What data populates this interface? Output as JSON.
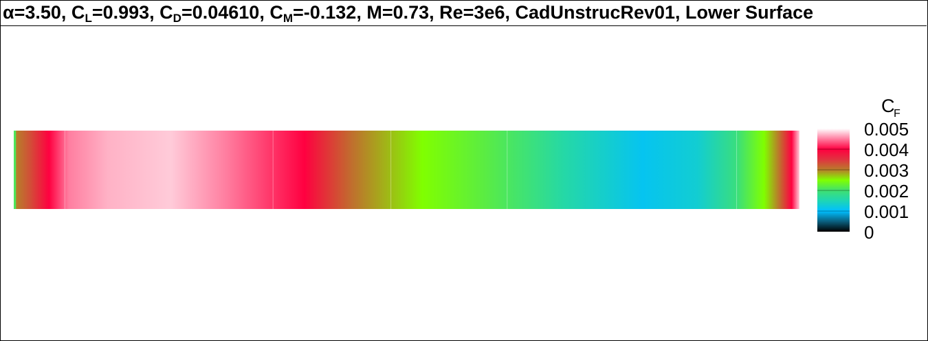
{
  "title": {
    "alpha_symbol": "α",
    "alpha_value": "=3.50, C",
    "cl_sub": "L",
    "cl_value": "=0.993, C",
    "cd_sub": "D",
    "cd_value": "=0.04610, C",
    "cm_sub": "M",
    "cm_value": "=-0.132, M=0.73, Re=3e6, CadUnstrucRev01, Lower Surface"
  },
  "chart_data": {
    "type": "heatmap",
    "variable": "C",
    "variable_sub": "F",
    "colorbar_range": [
      0,
      0.005
    ],
    "colorbar_ticks": [
      "0.005",
      "0.004",
      "0.003",
      "0.002",
      "0.001",
      "0"
    ],
    "colorbar_tick_values": [
      0.005,
      0.004,
      0.003,
      0.002,
      0.001,
      0
    ],
    "colormap": [
      {
        "value": 0.0,
        "color": "#000000"
      },
      {
        "value": 0.0005,
        "color": "#0a6080"
      },
      {
        "value": 0.001,
        "color": "#00bfff"
      },
      {
        "value": 0.0015,
        "color": "#1ed6b4"
      },
      {
        "value": 0.002,
        "color": "#40e070"
      },
      {
        "value": 0.0025,
        "color": "#80ff00"
      },
      {
        "value": 0.003,
        "color": "#b87d2a"
      },
      {
        "value": 0.0035,
        "color": "#e03340"
      },
      {
        "value": 0.004,
        "color": "#ff0040"
      },
      {
        "value": 0.0045,
        "color": "#ff7ea0"
      },
      {
        "value": 0.005,
        "color": "#ffffff"
      }
    ],
    "surface_profile": [
      {
        "x": 0.0,
        "cf": 0.0021
      },
      {
        "x": 0.004,
        "cf": 0.003
      },
      {
        "x": 0.02,
        "cf": 0.0033
      },
      {
        "x": 0.045,
        "cf": 0.004
      },
      {
        "x": 0.07,
        "cf": 0.0045
      },
      {
        "x": 0.12,
        "cf": 0.0047
      },
      {
        "x": 0.2,
        "cf": 0.0048
      },
      {
        "x": 0.27,
        "cf": 0.0045
      },
      {
        "x": 0.37,
        "cf": 0.004
      },
      {
        "x": 0.43,
        "cf": 0.0031
      },
      {
        "x": 0.52,
        "cf": 0.0025
      },
      {
        "x": 0.6,
        "cf": 0.0022
      },
      {
        "x": 0.7,
        "cf": 0.0016
      },
      {
        "x": 0.8,
        "cf": 0.0011
      },
      {
        "x": 0.87,
        "cf": 0.0013
      },
      {
        "x": 0.92,
        "cf": 0.0019
      },
      {
        "x": 0.955,
        "cf": 0.0025
      },
      {
        "x": 0.975,
        "cf": 0.0031
      },
      {
        "x": 0.99,
        "cf": 0.004
      },
      {
        "x": 1.0,
        "cf": 0.0048
      }
    ]
  }
}
